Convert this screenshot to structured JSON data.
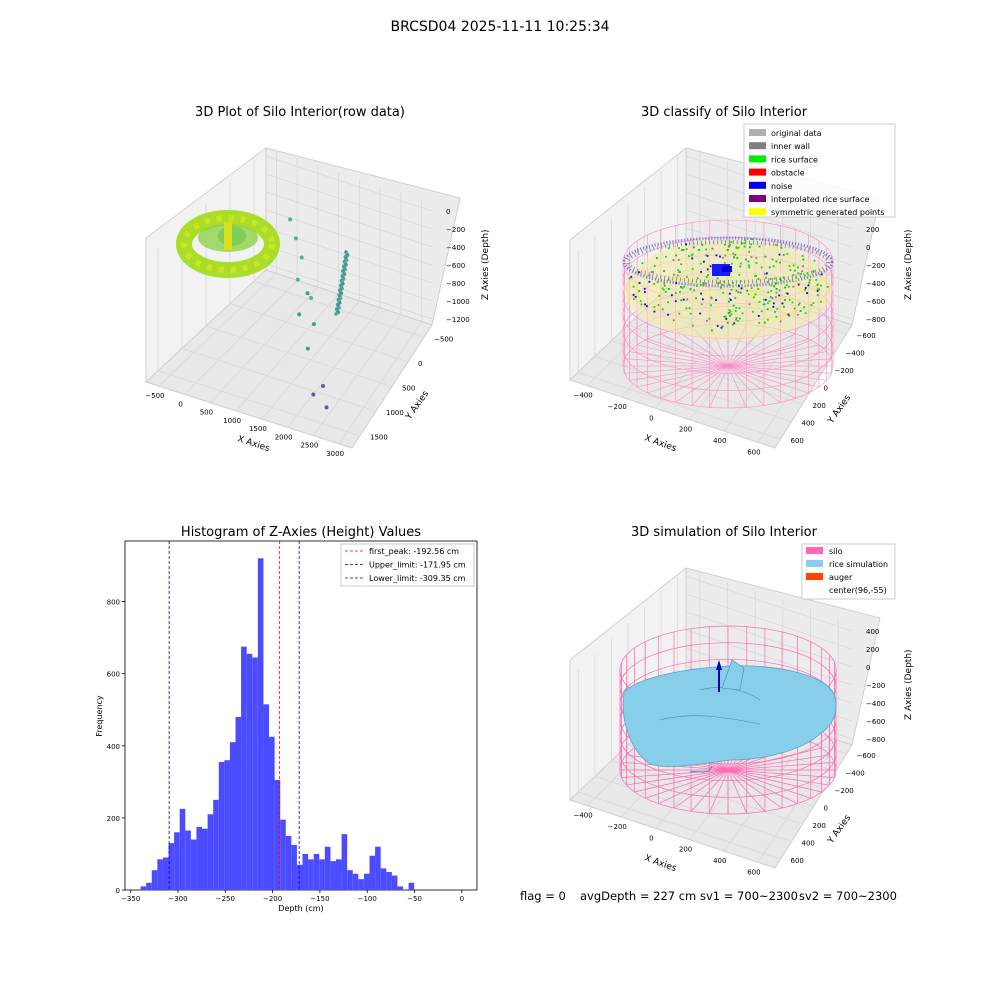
{
  "suptitle": "BRCSD04 2025-11-11 10:25:34",
  "chart_data": [
    {
      "type": "scatter",
      "title": "3D Plot of Silo Interior(row data)",
      "xlabel": "X Axies",
      "ylabel": "Y Axies",
      "zlabel": "Z Axies (Depth)",
      "xticks": [
        "−500",
        "0",
        "500",
        "1000",
        "1500",
        "2000",
        "2500",
        "3000"
      ],
      "yticks": [
        "−500",
        "0",
        "500",
        "1000",
        "1500"
      ],
      "zticks": [
        "0",
        "−200",
        "−400",
        "−600",
        "−800",
        "−1000",
        "−1200"
      ],
      "xlim": [
        -700,
        3300
      ],
      "ylim": [
        -700,
        1700
      ],
      "zlim": [
        -1300,
        50
      ],
      "points": [
        {
          "x": 2200,
          "y": -300,
          "z": -1150
        },
        {
          "x": 2500,
          "y": -350,
          "z": -1200
        },
        {
          "x": 2300,
          "y": -200,
          "z": -1100
        },
        {
          "x": 1700,
          "y": 150,
          "z": -1000
        },
        {
          "x": 1400,
          "y": 300,
          "z": -800
        },
        {
          "x": 1200,
          "y": 500,
          "z": -600
        },
        {
          "x": 1500,
          "y": 450,
          "z": -700
        },
        {
          "x": 900,
          "y": 800,
          "z": -400
        },
        {
          "x": 700,
          "y": 900,
          "z": -300
        },
        {
          "x": 1100,
          "y": 700,
          "z": -500
        },
        {
          "x": 1300,
          "y": 600,
          "z": -750
        },
        {
          "x": 1600,
          "y": 400,
          "z": -900
        }
      ]
    },
    {
      "type": "scatter",
      "title": "3D classify of Silo Interior",
      "xlabel": "X Axies",
      "ylabel": "Y Axies",
      "zlabel": "Z Axies (Depth)",
      "xticks": [
        "−400",
        "−200",
        "0",
        "200",
        "400",
        "600"
      ],
      "yticks": [
        "−600",
        "−400",
        "−200",
        "0",
        "200",
        "400",
        "600"
      ],
      "zticks": [
        "400",
        "200",
        "0",
        "−200",
        "−400",
        "−600",
        "−800"
      ],
      "legend": [
        {
          "label": "original data",
          "color": "#b0b0b0"
        },
        {
          "label": "inner wall",
          "color": "#808080"
        },
        {
          "label": "rice surface",
          "color": "#00ee00"
        },
        {
          "label": "obstacle",
          "color": "#ff0000"
        },
        {
          "label": "noise",
          "color": "#0000ee"
        },
        {
          "label": "interpolated rice surface",
          "color": "#800080"
        },
        {
          "label": "symmetric generated points",
          "color": "#ffff00"
        }
      ],
      "legend_loc": "upper right"
    },
    {
      "type": "bar",
      "title": "Histogram of Z-Axies (Height) Values",
      "xlabel": "Depth (cm)",
      "ylabel": "Frequency",
      "xlim": [
        -356,
        16
      ],
      "ylim": [
        0,
        968
      ],
      "xticks": [
        "−350",
        "−300",
        "−250",
        "−200",
        "−150",
        "−100",
        "−50",
        "0"
      ],
      "yticks": [
        "0",
        "200",
        "400",
        "600",
        "800"
      ],
      "bin_width": 5.9,
      "bin_start": -339.5,
      "counts": [
        10,
        20,
        55,
        85,
        90,
        130,
        160,
        225,
        165,
        140,
        175,
        170,
        210,
        250,
        355,
        360,
        410,
        480,
        675,
        655,
        645,
        920,
        515,
        425,
        305,
        195,
        150,
        125,
        70,
        100,
        85,
        100,
        85,
        120,
        80,
        85,
        155,
        55,
        45,
        30,
        45,
        95,
        120,
        60,
        50,
        40,
        10,
        0,
        20
      ],
      "bar_color": "#4b4bff",
      "vlines": [
        {
          "label": "first_peak: -192.56 cm",
          "x": -192.56,
          "color": "#ff0000"
        },
        {
          "label": "Upper_limit: -171.95 cm",
          "x": -171.95,
          "color": "#0000cc"
        },
        {
          "label": "Lower_limit: -309.35 cm",
          "x": -309.35,
          "color": "#0000cc"
        }
      ],
      "legend_loc": "upper right"
    },
    {
      "type": "surface",
      "title": "3D simulation of Silo Interior",
      "xlabel": "X Axies",
      "ylabel": "Y Axies",
      "zlabel": "Z Axies (Depth)",
      "xticks": [
        "−400",
        "−200",
        "0",
        "200",
        "400",
        "600"
      ],
      "yticks": [
        "−600",
        "−400",
        "−200",
        "0",
        "200",
        "400",
        "600"
      ],
      "zticks": [
        "400",
        "200",
        "0",
        "−200",
        "−400",
        "−600",
        "−800"
      ],
      "legend": [
        {
          "label": "silo",
          "color": "#ff69b4"
        },
        {
          "label": "rice simulation",
          "color": "#87ceeb"
        },
        {
          "label": "auger",
          "color": "#ff4500"
        },
        {
          "label": "center(96,-55)",
          "color": ""
        }
      ],
      "legend_loc": "upper right"
    }
  ],
  "status": {
    "flag": "flag = 0",
    "avg_depth": "avgDepth = 227 cm",
    "sv1": "sv1 = 700~2300",
    "sv2": "sv2 = 700~2300"
  }
}
